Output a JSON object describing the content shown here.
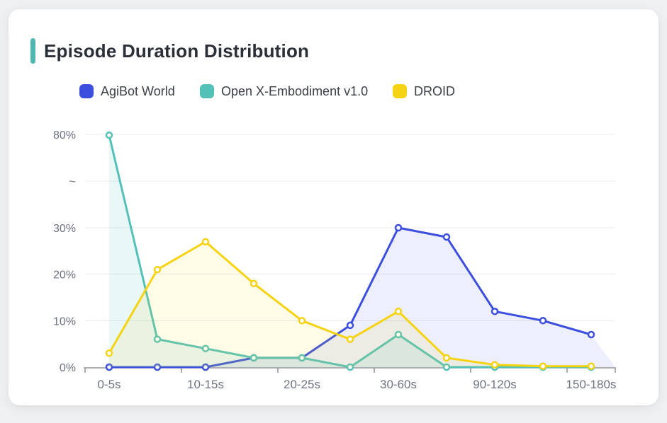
{
  "page": {
    "background_color": "#eff0f2",
    "card_background": "#ffffff"
  },
  "header": {
    "title": "Episode Duration Distribution",
    "accent_color": "#4db8b2"
  },
  "legend": [
    {
      "label": "AgiBot World",
      "color": "#3b4ede"
    },
    {
      "label": "Open X-Embodiment v1.0",
      "color": "#54c1b9"
    },
    {
      "label": "DROID",
      "color": "#f5d312"
    }
  ],
  "chart_data": {
    "type": "line",
    "title": "Episode Duration Distribution",
    "categories": [
      "0-5s",
      "",
      "10-15s",
      "",
      "20-25s",
      "",
      "30-60s",
      "",
      "90-120s",
      "",
      "150-180s"
    ],
    "visible_x_labels": [
      "0-5s",
      "10-15s",
      "20-25s",
      "30-60s",
      "90-120s",
      "150-180s"
    ],
    "x_label_every": 2,
    "xlabel": "",
    "ylabel": "",
    "ylim": [
      0,
      80
    ],
    "grid": true,
    "legend_position": "top",
    "y_axis": {
      "break": {
        "between": [
          30,
          80
        ]
      },
      "ticks": [
        {
          "value": 0,
          "label": "0%"
        },
        {
          "value": 10,
          "label": "10%"
        },
        {
          "value": 20,
          "label": "20%"
        },
        {
          "value": 30,
          "label": "30%"
        },
        {
          "value": 55,
          "label": "~",
          "is_break_marker": true
        },
        {
          "value": 80,
          "label": "80%"
        }
      ]
    },
    "series": [
      {
        "name": "AgiBot World",
        "color": "#3b4ede",
        "fill": "rgba(59,78,222,0.09)",
        "values": [
          0,
          0,
          0,
          2,
          2,
          9,
          30,
          28,
          12,
          10,
          7
        ]
      },
      {
        "name": "Open X-Embodiment v1.0",
        "color": "#54c1b9",
        "fill": "rgba(84,193,185,0.13)",
        "values": [
          79.6,
          6,
          4,
          2,
          2,
          0,
          7,
          0,
          0,
          0,
          0
        ]
      },
      {
        "name": "DROID",
        "color": "#f5d312",
        "fill": "rgba(245,211,18,0.10)",
        "values": [
          3,
          21,
          27,
          18,
          10,
          6,
          12,
          2,
          0.5,
          0.2,
          0.2
        ]
      }
    ],
    "style": {
      "grid_color": "#e9ecf1",
      "axis_color": "#8f949a",
      "tick_label_color": "#6d7380"
    }
  }
}
